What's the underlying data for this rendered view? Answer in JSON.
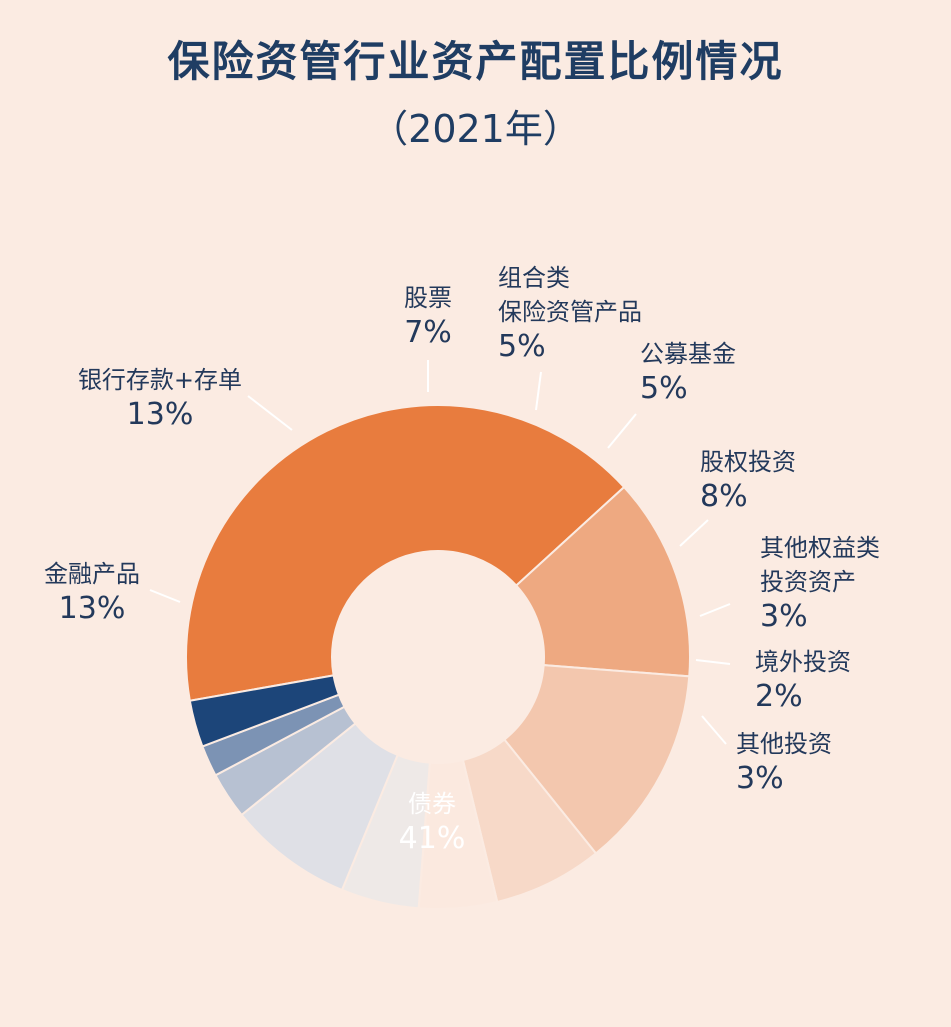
{
  "title": "保险资管行业资产配置比例情况",
  "subtitle": "（2021年）",
  "colors": {
    "background": "#fbebe2",
    "title": "#1f3d63",
    "label": "#23395b"
  },
  "chart_data": {
    "type": "pie",
    "variant": "donut",
    "title": "保险资管行业资产配置比例情况",
    "subtitle": "（2021年）",
    "legend": "none",
    "slices": [
      {
        "label": "债券",
        "value": 41,
        "display": "41%",
        "color": "#e87c3e"
      },
      {
        "label": "金融产品",
        "value": 13,
        "display": "13%",
        "color": "#eea981"
      },
      {
        "label": "银行存款+存单",
        "value": 13,
        "display": "13%",
        "color": "#f3c7ae"
      },
      {
        "label": "股票",
        "value": 7,
        "display": "7%",
        "color": "#f7d9c8"
      },
      {
        "label": "组合类\n保险资管产品",
        "value": 5,
        "display": "5%",
        "color": "#fbe9df"
      },
      {
        "label": "公募基金",
        "value": 5,
        "display": "5%",
        "color": "#eee9e7"
      },
      {
        "label": "股权投资",
        "value": 8,
        "display": "8%",
        "color": "#dfe0e6"
      },
      {
        "label": "其他权益类\n投资资产",
        "value": 3,
        "display": "3%",
        "color": "#b7c1d2"
      },
      {
        "label": "境外投资",
        "value": 2,
        "display": "2%",
        "color": "#7c93b4"
      },
      {
        "label": "其他投资",
        "value": 3,
        "display": "3%",
        "color": "#1c4579"
      }
    ]
  }
}
